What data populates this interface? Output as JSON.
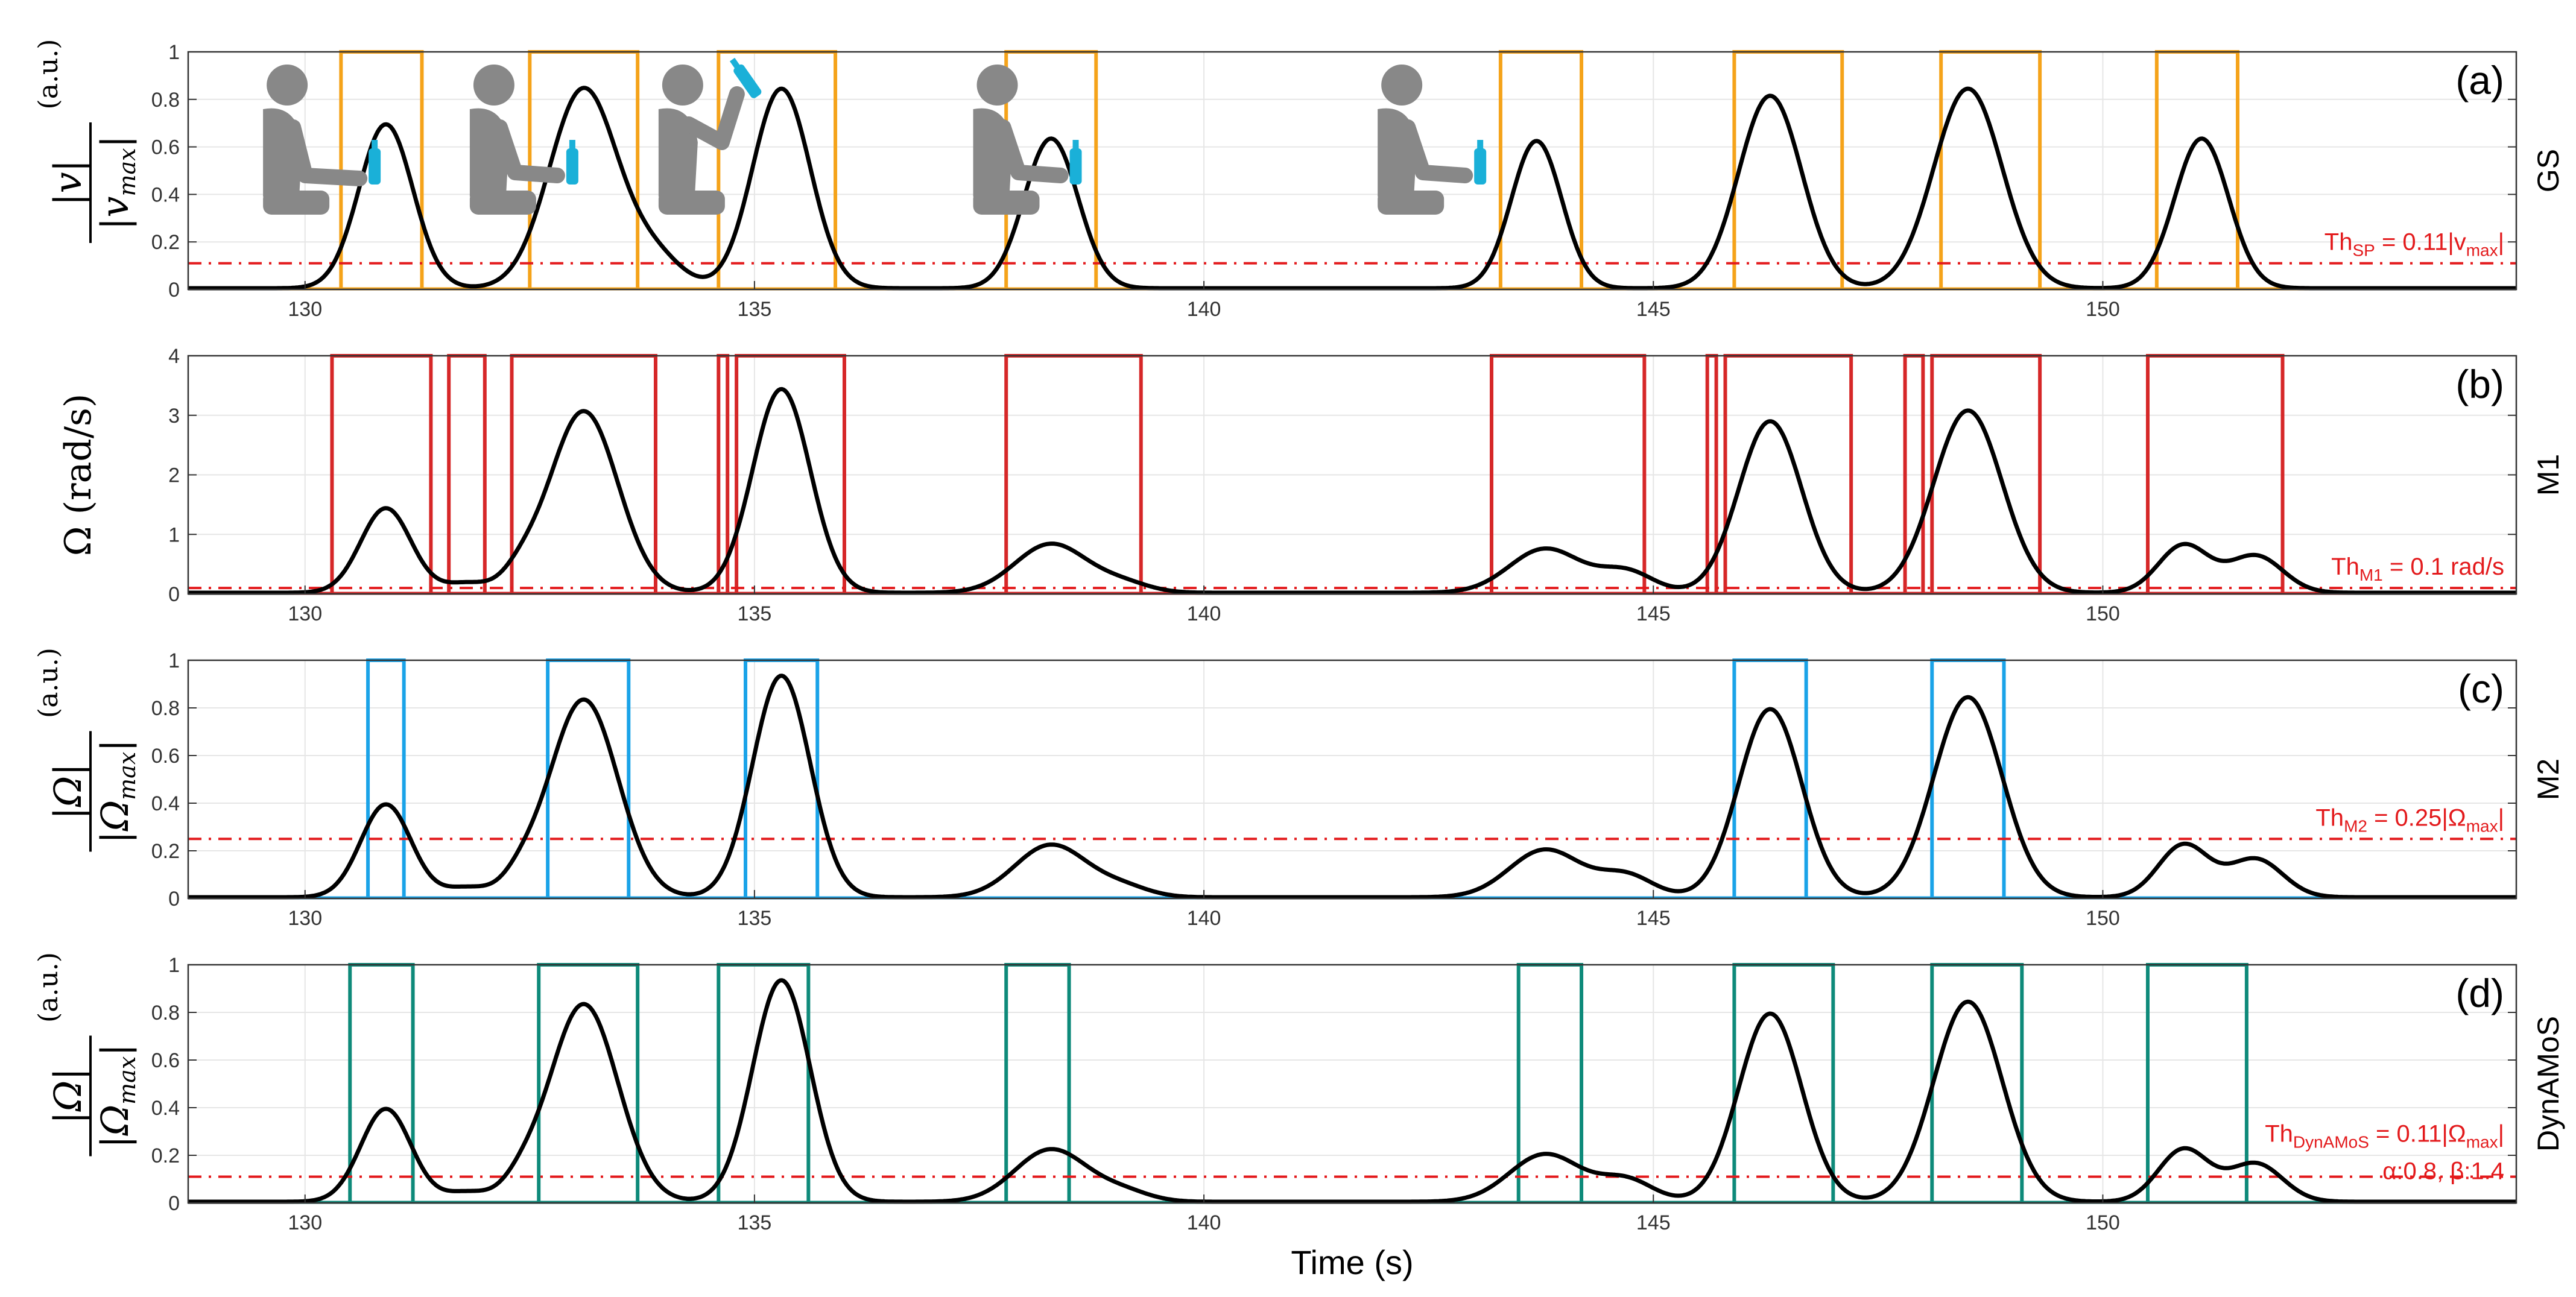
{
  "chart_data": [
    {
      "type": "line",
      "panel_label": "(a)",
      "side_label": "GS",
      "ylabel": {
        "numerator": "|v|",
        "denominator": "|v",
        "denominator_sub": "max",
        "unit": "(a.u.)"
      },
      "xlim": [
        128.7,
        154.6
      ],
      "ylim": [
        0,
        1
      ],
      "yticks": [
        0,
        0.2,
        0.4,
        0.6,
        0.8,
        1
      ],
      "ytick_labels": [
        "0",
        "0.2",
        "0.4",
        "0.6",
        "0.8",
        "1"
      ],
      "xticks": [
        130,
        135,
        140,
        145,
        150
      ],
      "xtick_labels": [
        "130",
        "135",
        "140",
        "145",
        "150"
      ],
      "grid": true,
      "threshold": {
        "value": 0.11,
        "label_main": "Th",
        "label_sub": "SP",
        "label_rest": " = 0.11|v",
        "label_sub2": "max",
        "label_end": "|"
      },
      "signal_peaks": [
        {
          "t": 130.9,
          "a": 0.69,
          "w": 0.3
        },
        {
          "t": 133.1,
          "a": 0.84,
          "w": 0.38
        },
        {
          "t": 133.9,
          "a": 0.12,
          "w": 0.3
        },
        {
          "t": 135.3,
          "a": 0.84,
          "w": 0.32
        },
        {
          "t": 138.3,
          "a": 0.63,
          "w": 0.3
        },
        {
          "t": 143.7,
          "a": 0.62,
          "w": 0.28
        },
        {
          "t": 146.3,
          "a": 0.81,
          "w": 0.35
        },
        {
          "t": 148.5,
          "a": 0.84,
          "w": 0.38
        },
        {
          "t": 151.1,
          "a": 0.63,
          "w": 0.3
        }
      ],
      "segments": [
        [
          130.4,
          131.3
        ],
        [
          132.5,
          133.7
        ],
        [
          134.6,
          135.9
        ],
        [
          137.8,
          138.8
        ],
        [
          143.3,
          144.2
        ],
        [
          145.9,
          147.1
        ],
        [
          148.2,
          149.3
        ],
        [
          150.6,
          151.5
        ]
      ],
      "segment_color": "#f5a31a",
      "icons": [
        {
          "t": 129.6,
          "pose": "seated-reach",
          "name": "person-reach-icon"
        },
        {
          "t": 131.9,
          "pose": "seated-hold",
          "name": "person-hold-icon"
        },
        {
          "t": 134.0,
          "pose": "seated-drink",
          "name": "person-drink-icon"
        },
        {
          "t": 137.5,
          "pose": "seated-hold",
          "name": "person-return-icon"
        },
        {
          "t": 142.0,
          "pose": "seated-rest",
          "name": "person-rest-icon"
        }
      ]
    },
    {
      "type": "line",
      "panel_label": "(b)",
      "side_label": "M1",
      "ylabel": {
        "text": "Ω (rad/s)"
      },
      "xlim": [
        128.7,
        154.6
      ],
      "ylim": [
        0,
        4
      ],
      "yticks": [
        0,
        1,
        2,
        3,
        4
      ],
      "ytick_labels": [
        "0",
        "1",
        "2",
        "3",
        "4"
      ],
      "xticks": [
        130,
        135,
        140,
        145,
        150
      ],
      "xtick_labels": [
        "130",
        "135",
        "140",
        "145",
        "150"
      ],
      "grid": true,
      "threshold": {
        "value": 0.1,
        "label_main": "Th",
        "label_sub": "M1",
        "label_rest": " = 0.1 rad/s"
      },
      "signal_peaks": [
        {
          "t": 130.9,
          "a": 1.42,
          "w": 0.28
        },
        {
          "t": 131.8,
          "a": 0.16,
          "w": 0.25
        },
        {
          "t": 132.4,
          "a": 0.25,
          "w": 0.2
        },
        {
          "t": 133.1,
          "a": 3.05,
          "w": 0.38
        },
        {
          "t": 135.3,
          "a": 3.42,
          "w": 0.32
        },
        {
          "t": 138.3,
          "a": 0.82,
          "w": 0.4
        },
        {
          "t": 139.1,
          "a": 0.15,
          "w": 0.3
        },
        {
          "t": 143.8,
          "a": 0.74,
          "w": 0.4
        },
        {
          "t": 144.7,
          "a": 0.35,
          "w": 0.3
        },
        {
          "t": 146.3,
          "a": 2.88,
          "w": 0.35
        },
        {
          "t": 148.5,
          "a": 3.06,
          "w": 0.38
        },
        {
          "t": 150.9,
          "a": 0.8,
          "w": 0.28
        },
        {
          "t": 151.7,
          "a": 0.62,
          "w": 0.3
        }
      ],
      "segments": [
        [
          130.3,
          131.4
        ],
        [
          131.6,
          132.0
        ],
        [
          132.3,
          133.9
        ],
        [
          134.6,
          134.7
        ],
        [
          134.8,
          136.0
        ],
        [
          137.8,
          139.3
        ],
        [
          143.2,
          144.9
        ],
        [
          145.6,
          145.7
        ],
        [
          145.8,
          147.2
        ],
        [
          147.8,
          148.0
        ],
        [
          148.1,
          149.3
        ],
        [
          150.5,
          152.0
        ]
      ],
      "segment_color": "#d62728"
    },
    {
      "type": "line",
      "panel_label": "(c)",
      "side_label": "M2",
      "ylabel": {
        "numerator": "|Ω|",
        "denominator": "|Ω",
        "denominator_sub": "max",
        "unit": "(a.u.)"
      },
      "xlim": [
        128.7,
        154.6
      ],
      "ylim": [
        0,
        1
      ],
      "yticks": [
        0,
        0.2,
        0.4,
        0.6,
        0.8,
        1
      ],
      "ytick_labels": [
        "0",
        "0.2",
        "0.4",
        "0.6",
        "0.8",
        "1"
      ],
      "xticks": [
        130,
        135,
        140,
        145,
        150
      ],
      "xtick_labels": [
        "130",
        "135",
        "140",
        "145",
        "150"
      ],
      "grid": true,
      "threshold": {
        "value": 0.25,
        "label_main": "Th",
        "label_sub": "M2",
        "label_rest": " = 0.25|Ω",
        "label_sub2": "max",
        "label_end": "|"
      },
      "signal_peaks": [
        {
          "t": 130.9,
          "a": 0.39,
          "w": 0.28
        },
        {
          "t": 131.8,
          "a": 0.04,
          "w": 0.25
        },
        {
          "t": 132.4,
          "a": 0.06,
          "w": 0.2
        },
        {
          "t": 133.1,
          "a": 0.83,
          "w": 0.38
        },
        {
          "t": 135.3,
          "a": 0.93,
          "w": 0.32
        },
        {
          "t": 138.3,
          "a": 0.22,
          "w": 0.4
        },
        {
          "t": 139.1,
          "a": 0.04,
          "w": 0.3
        },
        {
          "t": 143.8,
          "a": 0.2,
          "w": 0.4
        },
        {
          "t": 144.7,
          "a": 0.09,
          "w": 0.3
        },
        {
          "t": 146.3,
          "a": 0.79,
          "w": 0.35
        },
        {
          "t": 148.5,
          "a": 0.84,
          "w": 0.38
        },
        {
          "t": 150.9,
          "a": 0.22,
          "w": 0.28
        },
        {
          "t": 151.7,
          "a": 0.16,
          "w": 0.3
        }
      ],
      "segments": [
        [
          130.7,
          131.1
        ],
        [
          132.7,
          133.6
        ],
        [
          134.9,
          135.7
        ],
        [
          145.9,
          146.7
        ],
        [
          148.1,
          148.9
        ]
      ],
      "segment_color": "#1aa3e8"
    },
    {
      "type": "line",
      "panel_label": "(d)",
      "side_label": "DynAMoS",
      "ylabel": {
        "numerator": "|Ω|",
        "denominator": "|Ω",
        "denominator_sub": "max",
        "unit": "(a.u.)"
      },
      "xlim": [
        128.7,
        154.6
      ],
      "ylim": [
        0,
        1
      ],
      "yticks": [
        0,
        0.2,
        0.4,
        0.6,
        0.8,
        1
      ],
      "ytick_labels": [
        "0",
        "0.2",
        "0.4",
        "0.6",
        "0.8",
        "1"
      ],
      "xticks": [
        130,
        135,
        140,
        145,
        150
      ],
      "xtick_labels": [
        "130",
        "135",
        "140",
        "145",
        "150"
      ],
      "grid": true,
      "xlabel": "Time (s)",
      "threshold": {
        "value": 0.11,
        "label_main": "Th",
        "label_sub": "DynAMoS",
        "label_rest": " = 0.11|Ω",
        "label_sub2": "max",
        "label_end": "|",
        "label_line2": "α:0.8, β:1.4"
      },
      "signal_peaks": [
        {
          "t": 130.9,
          "a": 0.39,
          "w": 0.28
        },
        {
          "t": 131.8,
          "a": 0.04,
          "w": 0.25
        },
        {
          "t": 132.4,
          "a": 0.06,
          "w": 0.2
        },
        {
          "t": 133.1,
          "a": 0.83,
          "w": 0.38
        },
        {
          "t": 135.3,
          "a": 0.93,
          "w": 0.32
        },
        {
          "t": 138.3,
          "a": 0.22,
          "w": 0.4
        },
        {
          "t": 139.1,
          "a": 0.04,
          "w": 0.3
        },
        {
          "t": 143.8,
          "a": 0.2,
          "w": 0.4
        },
        {
          "t": 144.7,
          "a": 0.09,
          "w": 0.3
        },
        {
          "t": 146.3,
          "a": 0.79,
          "w": 0.35
        },
        {
          "t": 148.5,
          "a": 0.84,
          "w": 0.38
        },
        {
          "t": 150.9,
          "a": 0.22,
          "w": 0.28
        },
        {
          "t": 151.7,
          "a": 0.16,
          "w": 0.3
        }
      ],
      "segments": [
        [
          130.5,
          131.2
        ],
        [
          132.6,
          133.7
        ],
        [
          134.6,
          135.6
        ],
        [
          137.8,
          138.5
        ],
        [
          143.5,
          144.2
        ],
        [
          145.9,
          147.0
        ],
        [
          148.1,
          149.1
        ],
        [
          150.5,
          151.6
        ]
      ],
      "segment_color": "#0e8a7a"
    }
  ],
  "colors": {
    "signal": "#000000",
    "threshold": "#e31a1c",
    "grid": "#e6e6e6",
    "icon": "#888888",
    "bottle": "#1ab0d8"
  }
}
